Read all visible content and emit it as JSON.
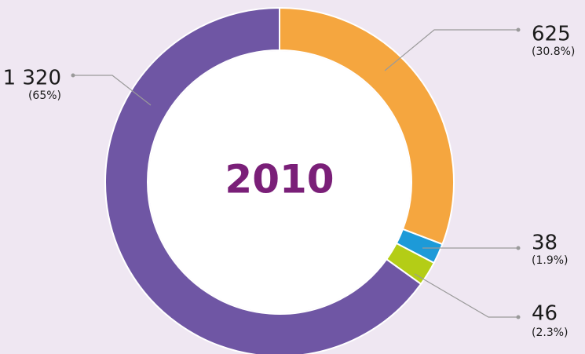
{
  "chart_data": {
    "type": "donut",
    "title": "2010",
    "values": [
      625,
      38,
      46,
      1320
    ],
    "value_labels": [
      "625",
      "38",
      "46",
      "1 320"
    ],
    "percents": [
      30.8,
      1.9,
      2.3,
      65
    ],
    "percent_labels": [
      "(30.8%)",
      "(1.9%)",
      "(2.3%)",
      "(65%)"
    ],
    "colors": [
      "#f5a63f",
      "#1d9ad8",
      "#b4cd16",
      "#6f56a4"
    ]
  }
}
